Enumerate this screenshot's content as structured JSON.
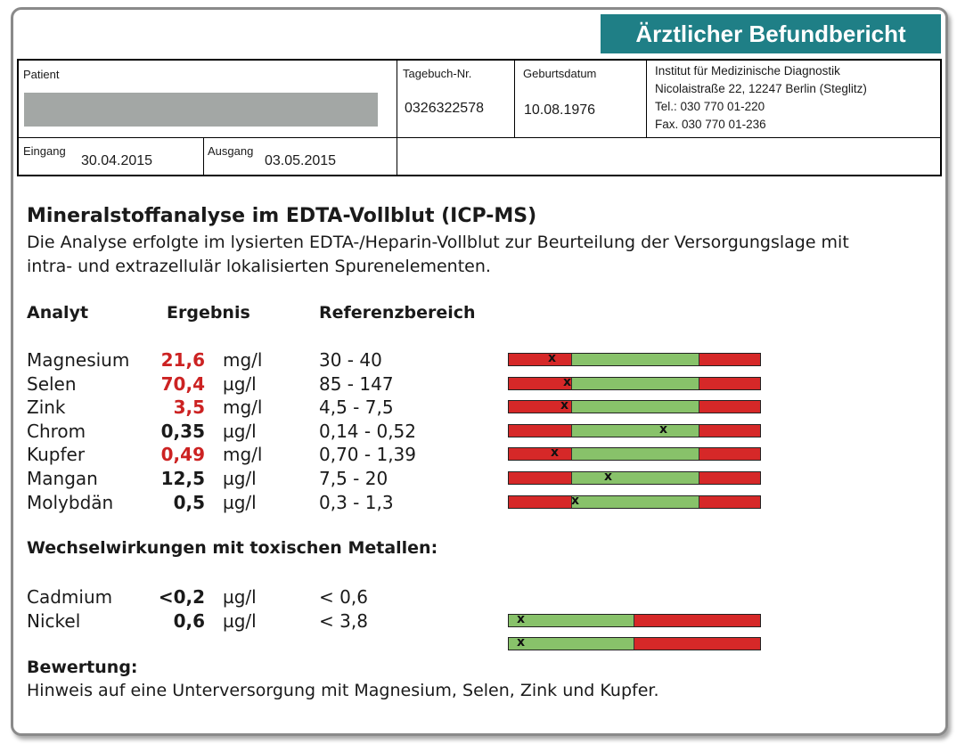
{
  "report_title": "Ärztlicher Befundbericht",
  "header": {
    "patient_label": "Patient",
    "tagebuch_label": "Tagebuch-Nr.",
    "tagebuch_value": "0326322578",
    "geburt_label": "Geburtsdatum",
    "geburt_value": "10.08.1976",
    "institut": {
      "name": "Institut für Medizinische Diagnostik",
      "address": "Nicolaistraße 22, 12247 Berlin (Steglitz)",
      "tel": "Tel.: 030 770 01-220",
      "fax": "Fax. 030 770 01-236"
    },
    "eingang_label": "Eingang",
    "eingang_value": "30.04.2015",
    "ausgang_label": "Ausgang",
    "ausgang_value": "03.05.2015"
  },
  "section_title": "Mineralstoffanalyse im EDTA-Vollblut (ICP-MS)",
  "intro_line1": "Die Analyse erfolgte im lysierten EDTA-/Heparin-Vollblut zur Beurteilung der Versorgungslage mit",
  "intro_line2": "intra- und extrazellulär lokalisierten Spurenelementen.",
  "columns": {
    "analyt": "Analyt",
    "ergebnis": "Ergebnis",
    "referenz": "Referenzbereich"
  },
  "rows": [
    {
      "name": "Magnesium",
      "value": "21,6",
      "unit": "mg/l",
      "ref": "30 - 40",
      "low": true,
      "mark": "x",
      "mark_pos": 0.17
    },
    {
      "name": "Selen",
      "value": "70,4",
      "unit": "µg/l",
      "ref": "85 - 147",
      "low": true,
      "mark": "x",
      "mark_pos": 0.23
    },
    {
      "name": "Zink",
      "value": "3,5",
      "unit": "mg/l",
      "ref": "4,5 - 7,5",
      "low": true,
      "mark": "x",
      "mark_pos": 0.22
    },
    {
      "name": "Chrom",
      "value": "0,35",
      "unit": "µg/l",
      "ref": "0,14 - 0,52",
      "low": false,
      "mark": "x",
      "mark_pos": 0.61
    },
    {
      "name": "Kupfer",
      "value": "0,49",
      "unit": "mg/l",
      "ref": "0,70 - 1,39",
      "low": true,
      "mark": "x",
      "mark_pos": 0.18
    },
    {
      "name": "Mangan",
      "value": "12,5",
      "unit": "µg/l",
      "ref": "7,5 - 20",
      "low": false,
      "mark": "x",
      "mark_pos": 0.39
    },
    {
      "name": "Molybdän",
      "value": "0,5",
      "unit": "µg/l",
      "ref": "0,3 - 1,3",
      "low": false,
      "mark": "x",
      "mark_pos": 0.26
    }
  ],
  "interaction_title": "Wechselwirkungen mit toxischen Metallen:",
  "toxic_rows": [
    {
      "name": "Cadmium",
      "value": "<0,2",
      "unit": "µg/l",
      "ref": "< 0,6",
      "mark": "x",
      "mark_pos": 0.03
    },
    {
      "name": "Nickel",
      "value": "0,6",
      "unit": "µg/l",
      "ref": "< 3,8",
      "mark": "x",
      "mark_pos": 0.03
    }
  ],
  "bewertung_title": "Bewertung:",
  "bewertung_text": "Hinweis auf eine Unterversorgung mit Magnesium, Selen, Zink und Kupfer.",
  "colors": {
    "accent": "#1f7f86",
    "low": "#cc2222",
    "bar_red": "#d62828",
    "bar_green": "#88c26a"
  }
}
